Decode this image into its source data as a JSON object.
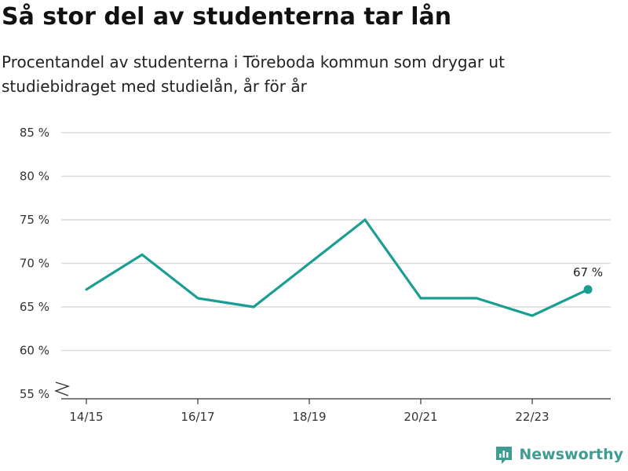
{
  "title": "Så stor del av studenterna tar lån",
  "subtitle": "Procentandel av studenterna i Töreboda kommun som drygar ut studiebidraget med studielån, år för år",
  "brand": {
    "name": "Newsworthy",
    "icon": "newsworthy-logo-icon"
  },
  "colors": {
    "line": "#1a9e91",
    "grid": "#d9d9d9",
    "axis": "#333333",
    "brand": "#3f9c92"
  },
  "chart_data": {
    "type": "line",
    "title": "Så stor del av studenterna tar lån",
    "xlabel": "",
    "ylabel": "",
    "x": [
      "14/15",
      "15/16",
      "16/17",
      "17/18",
      "18/19",
      "19/20",
      "20/21",
      "21/22",
      "22/23",
      "23/24"
    ],
    "x_tick_labels": [
      "14/15",
      "16/17",
      "18/19",
      "20/21",
      "22/23"
    ],
    "series": [
      {
        "values": [
          67,
          71,
          66,
          65,
          70,
          75,
          66,
          66,
          64,
          67
        ]
      }
    ],
    "y_ticks": [
      55,
      60,
      65,
      70,
      75,
      80,
      85
    ],
    "y_tick_labels": [
      "55 %",
      "60 %",
      "65 %",
      "70 %",
      "75 %",
      "80 %",
      "85 %"
    ],
    "ylim": [
      55,
      85
    ],
    "y_axis_break": true,
    "grid": true,
    "last_point_label": "67 %"
  }
}
